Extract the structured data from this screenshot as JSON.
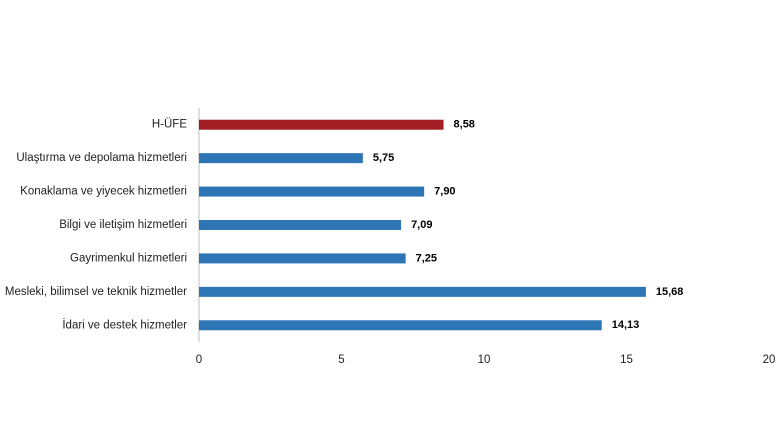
{
  "chart_data": {
    "type": "hbar",
    "categories": [
      "H-ÜFE",
      "Ulaştırma ve depolama hizmetleri",
      "Konaklama ve yiyecek hizmetleri",
      "Bilgi ve iletişim hizmetleri",
      "Gayrimenkul hizmetleri",
      "Mesleki, bilimsel ve teknik hizmetler",
      "İdari ve destek hizmetler"
    ],
    "values": [
      8.58,
      5.75,
      7.9,
      7.09,
      7.25,
      15.68,
      14.13
    ],
    "value_labels": [
      "8,58",
      "5,75",
      "7,90",
      "7,09",
      "7,25",
      "15,68",
      "14,13"
    ],
    "colors": [
      "#a31d24",
      "#2e75b6",
      "#2e75b6",
      "#2e75b6",
      "#2e75b6",
      "#2e75b6",
      "#2e75b6"
    ],
    "xlim": [
      0,
      20
    ],
    "xticks": [
      0,
      5,
      10,
      15,
      20
    ],
    "grid": false
  }
}
